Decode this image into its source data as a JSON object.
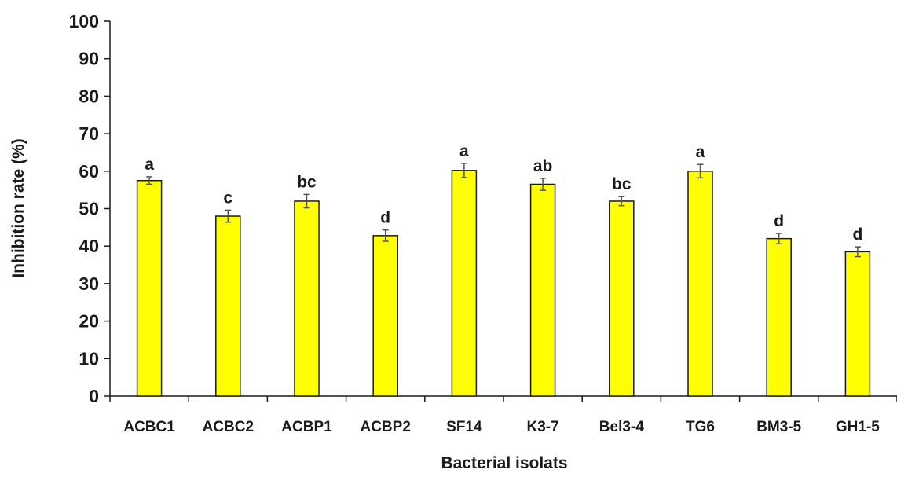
{
  "chart_data": {
    "type": "bar",
    "categories": [
      "ACBC1",
      "ACBC2",
      "ACBP1",
      "ACBP2",
      "SF14",
      "K3-7",
      "Bel3-4",
      "TG6",
      "BM3-5",
      "GH1-5"
    ],
    "values": [
      57.5,
      48,
      52,
      42.8,
      60.2,
      56.5,
      52,
      60,
      42,
      38.5
    ],
    "errors": [
      1.0,
      1.6,
      1.8,
      1.5,
      1.9,
      1.6,
      1.2,
      1.8,
      1.4,
      1.3
    ],
    "letters": [
      "a",
      "c",
      "bc",
      "d",
      "a",
      "ab",
      "bc",
      "a",
      "d",
      "d"
    ],
    "title": "",
    "xlabel": "Bacterial isolats",
    "ylabel": "Inhibition rate (%)",
    "ylim": [
      0,
      100
    ],
    "yticks": [
      "0",
      "10",
      "20",
      "30",
      "40",
      "50",
      "60",
      "70",
      "80",
      "90",
      "100"
    ],
    "bar_color": "#ffff00",
    "bar_edge_color": "#1a1a1a",
    "grid": false,
    "legend": "none"
  }
}
